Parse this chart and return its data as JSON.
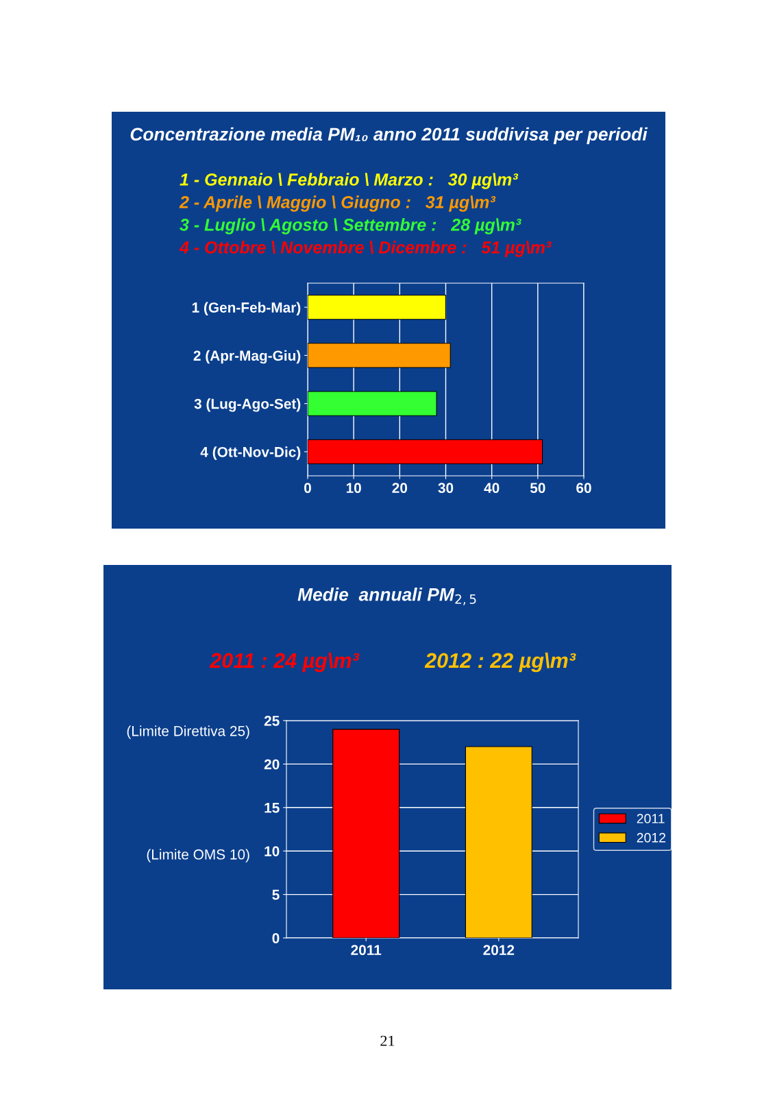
{
  "chart_data": [
    {
      "type": "bar",
      "orientation": "horizontal",
      "title": "Concentrazione media PM₁₀ anno 2011 suddivisa per periodi",
      "annotations": [
        "1 - Gennaio \\ Febbraio \\ Marzo :   30 µg\\m³",
        "2 - Aprile \\ Maggio \\ Giugno :   31 µg\\m³",
        "3 - Luglio \\ Agosto \\ Settembre :   28 µg\\m³",
        "4 - Ottobre \\ Novembre \\ Dicembre :   51 µg\\m³"
      ],
      "categories": [
        "1 (Gen-Feb-Mar)",
        "2 (Apr-Mag-Giu)",
        "3 (Lug-Ago-Set)",
        "4 (Ott-Nov-Dic)"
      ],
      "values": [
        30,
        31,
        28,
        51
      ],
      "colors": [
        "#ffff00",
        "#ff9900",
        "#33ff33",
        "#ff0000"
      ],
      "xlim": [
        0,
        60
      ],
      "xticks": [
        0,
        10,
        20,
        30,
        40,
        50,
        60
      ],
      "grid": "x"
    },
    {
      "type": "bar",
      "title": "Medie  annuali PM$_{2,5}$",
      "annotations": [
        "2011 : 24 µg\\m³",
        "2012 : 22 µg\\m³",
        "(Limite Direttiva 25)",
        "(Limite OMS 10)",
        "21"
      ],
      "categories": [
        "2011",
        "2012"
      ],
      "series": [
        {
          "name": "2011",
          "color": "#ff0000",
          "values": [
            24,
            null
          ]
        },
        {
          "name": "2012",
          "color": "#ffc000",
          "values": [
            null,
            22
          ]
        }
      ],
      "ylim": [
        0,
        25
      ],
      "yticks": [
        0,
        5,
        10,
        15,
        20,
        25
      ],
      "grid": "y",
      "legend": "right"
    }
  ]
}
